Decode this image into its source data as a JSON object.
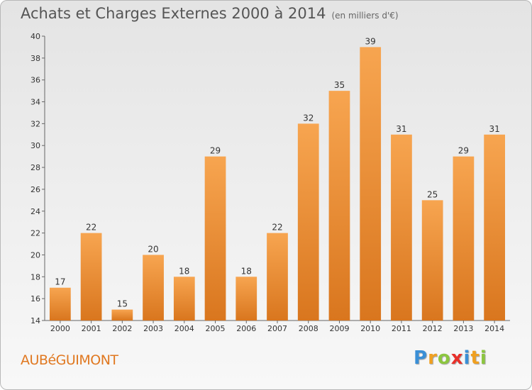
{
  "header": {
    "title": "Achats et Charges Externes 2000 à 2014",
    "unit": "(en milliers d'€)"
  },
  "footer": {
    "commune": "AUBéGUIMONT",
    "logo_letters": [
      {
        "char": "P",
        "color": "#3a8fd6"
      },
      {
        "char": "r",
        "color": "#f0a020"
      },
      {
        "char": "o",
        "color": "#8cc63f"
      },
      {
        "char": "x",
        "color": "#e8302a"
      },
      {
        "char": "i",
        "color": "#3a8fd6"
      },
      {
        "char": "t",
        "color": "#f0a020"
      },
      {
        "char": "i",
        "color": "#8cc63f"
      }
    ]
  },
  "chart_data": {
    "type": "bar",
    "categories": [
      "2000",
      "2001",
      "2002",
      "2003",
      "2004",
      "2005",
      "2006",
      "2007",
      "2008",
      "2009",
      "2010",
      "2011",
      "2012",
      "2013",
      "2014"
    ],
    "values": [
      17,
      22,
      15,
      20,
      18,
      29,
      18,
      22,
      32,
      35,
      39,
      31,
      25,
      29,
      31
    ],
    "ylim": [
      14,
      40
    ],
    "ytick_step": 2,
    "grid": false,
    "bar_color_top": "#f7a550",
    "bar_color_bottom": "#d9761e"
  }
}
